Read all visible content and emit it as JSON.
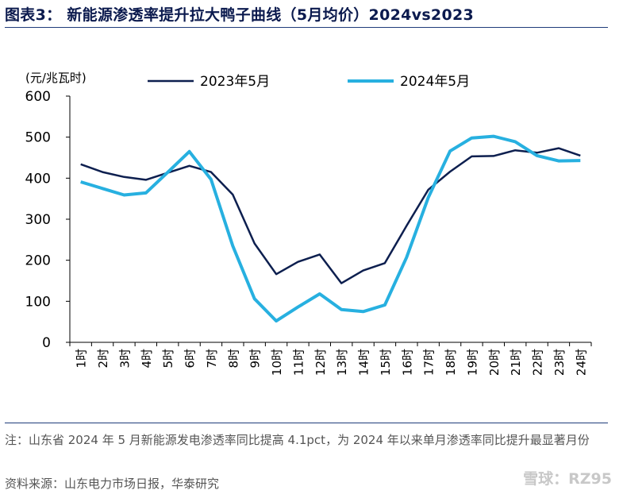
{
  "header": {
    "title": "图表3：  新能源渗透率提升拉大鸭子曲线（5月均价）2024vs2023"
  },
  "chart_data": {
    "type": "line",
    "ylabel": "(元/兆瓦时)",
    "ylim": [
      0,
      600
    ],
    "yticks": [
      0,
      100,
      200,
      300,
      400,
      500,
      600
    ],
    "categories": [
      "1时",
      "2时",
      "3时",
      "4时",
      "5时",
      "6时",
      "7时",
      "8时",
      "9时",
      "10时",
      "11时",
      "12时",
      "13时",
      "14时",
      "15时",
      "16时",
      "17时",
      "18时",
      "19时",
      "20时",
      "21时",
      "22时",
      "23时",
      "24时"
    ],
    "legend_position": "top",
    "grid": false,
    "series": [
      {
        "name": "2023年5月",
        "color": "#0d1f4f",
        "values": [
          434,
          415,
          403,
          396,
          413,
          430,
          415,
          360,
          241,
          166,
          196,
          214,
          144,
          175,
          193,
          284,
          372,
          416,
          453,
          454,
          468,
          462,
          473,
          455
        ]
      },
      {
        "name": "2024年5月",
        "color": "#27b0e0",
        "values": [
          391,
          375,
          359,
          364,
          414,
          465,
          397,
          235,
          106,
          52,
          86,
          118,
          80,
          75,
          91,
          207,
          353,
          466,
          498,
          502,
          489,
          455,
          442,
          443
        ]
      }
    ]
  },
  "footer": {
    "note": "注：山东省 2024 年 5 月新能源发电渗透率同比提高 4.1pct，为 2024 年以来单月渗透率同比提升最显著月份",
    "source": "资料来源：山东电力市场日报，华泰研究",
    "watermark": "雪球：RZ95"
  }
}
